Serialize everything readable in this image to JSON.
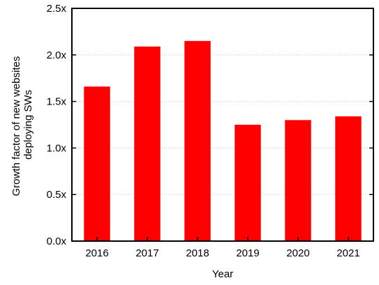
{
  "chart_data": {
    "type": "bar",
    "categories": [
      "2016",
      "2017",
      "2018",
      "2019",
      "2020",
      "2021"
    ],
    "values": [
      1.66,
      2.09,
      2.15,
      1.25,
      1.3,
      1.34
    ],
    "title": "",
    "xlabel": "Year",
    "ylabel_lines": [
      "Growth factor of new websites",
      "deploying SWs"
    ],
    "ylim": [
      0,
      2.5
    ],
    "yticks": [
      {
        "value": 0.0,
        "label": "0.0x"
      },
      {
        "value": 0.5,
        "label": "0.5x"
      },
      {
        "value": 1.0,
        "label": "1.0x"
      },
      {
        "value": 1.5,
        "label": "1.5x"
      },
      {
        "value": 2.0,
        "label": "2.0x"
      },
      {
        "value": 2.5,
        "label": "2.5x"
      }
    ],
    "grid": true,
    "legend": "none",
    "colors": {
      "bar": "#ff0000",
      "grid": "#c8c8c8",
      "axis": "#000000"
    }
  }
}
